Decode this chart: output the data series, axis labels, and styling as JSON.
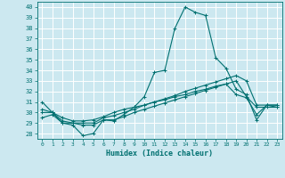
{
  "xlabel": "Humidex (Indice chaleur)",
  "ylabel": "",
  "background_color": "#cce8f0",
  "grid_color": "#ffffff",
  "line_color": "#007070",
  "xlim": [
    -0.5,
    23.5
  ],
  "ylim": [
    27.5,
    40.5
  ],
  "xticks": [
    0,
    1,
    2,
    3,
    4,
    5,
    6,
    7,
    8,
    9,
    10,
    11,
    12,
    13,
    14,
    15,
    16,
    17,
    18,
    19,
    20,
    21,
    22,
    23
  ],
  "yticks": [
    28,
    29,
    30,
    31,
    32,
    33,
    34,
    35,
    36,
    37,
    38,
    39,
    40
  ],
  "series": [
    [
      31.0,
      30.0,
      29.0,
      28.8,
      27.8,
      28.0,
      29.3,
      29.2,
      29.8,
      30.5,
      31.5,
      33.8,
      34.0,
      38.0,
      40.0,
      39.5,
      39.2,
      35.2,
      34.2,
      32.2,
      31.7,
      29.3,
      30.7,
      30.7
    ],
    [
      30.0,
      30.0,
      29.2,
      29.0,
      29.0,
      29.0,
      29.5,
      29.7,
      30.0,
      30.3,
      30.7,
      31.0,
      31.3,
      31.6,
      32.0,
      32.3,
      32.6,
      32.9,
      33.2,
      33.5,
      33.0,
      30.7,
      30.7,
      30.7
    ],
    [
      29.5,
      29.8,
      29.0,
      29.0,
      28.8,
      28.8,
      29.3,
      29.3,
      29.6,
      30.0,
      30.3,
      30.6,
      30.9,
      31.2,
      31.5,
      31.8,
      32.1,
      32.4,
      32.7,
      31.7,
      31.4,
      29.8,
      30.7,
      30.5
    ],
    [
      30.3,
      30.0,
      29.5,
      29.2,
      29.2,
      29.3,
      29.6,
      30.0,
      30.3,
      30.5,
      30.7,
      31.0,
      31.2,
      31.5,
      31.7,
      32.0,
      32.2,
      32.5,
      32.7,
      33.0,
      31.5,
      30.5,
      30.5,
      30.5
    ]
  ]
}
